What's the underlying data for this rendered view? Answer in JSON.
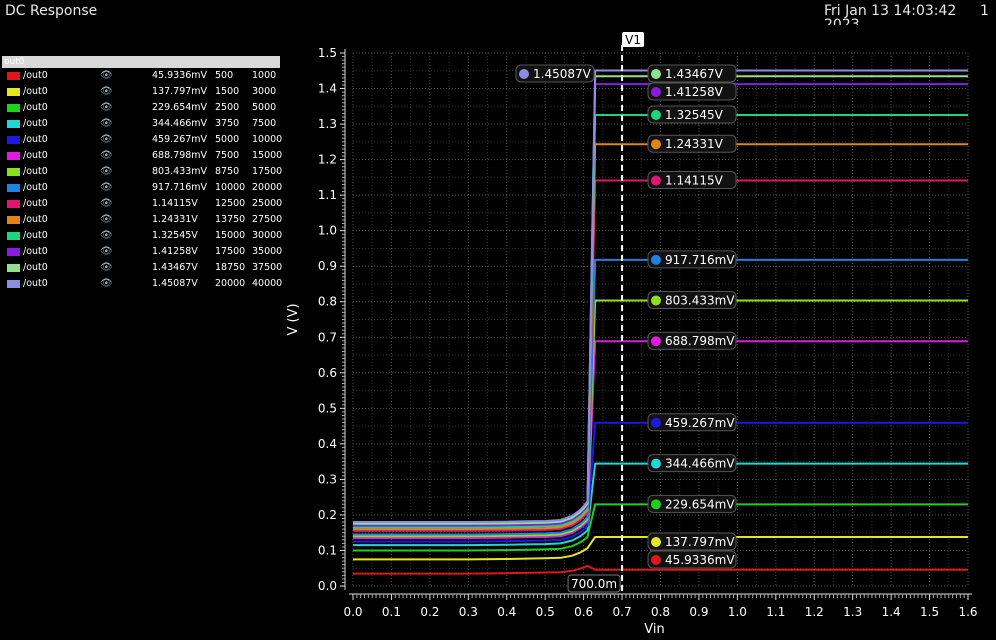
{
  "window": {
    "title": "DC Response",
    "date": "Fri Jan 13 14:03:42",
    "date_year": "2023",
    "page": "1"
  },
  "legend": {
    "header": "out0",
    "rows": [
      {
        "name": "/out0",
        "value": "45.9336mV",
        "a": "500",
        "b": "1000",
        "color": "#e0161b"
      },
      {
        "name": "/out0",
        "value": "137.797mV",
        "a": "1500",
        "b": "3000",
        "color": "#e6e620"
      },
      {
        "name": "/out0",
        "value": "229.654mV",
        "a": "2500",
        "b": "5000",
        "color": "#1fd01f"
      },
      {
        "name": "/out0",
        "value": "344.466mV",
        "a": "3750",
        "b": "7500",
        "color": "#20d6d6"
      },
      {
        "name": "/out0",
        "value": "459.267mV",
        "a": "5000",
        "b": "10000",
        "color": "#1b1be0"
      },
      {
        "name": "/out0",
        "value": "688.798mV",
        "a": "7500",
        "b": "15000",
        "color": "#e01be0"
      },
      {
        "name": "/out0",
        "value": "803.433mV",
        "a": "8750",
        "b": "17500",
        "color": "#8ce01b"
      },
      {
        "name": "/out0",
        "value": "917.716mV",
        "a": "10000",
        "b": "20000",
        "color": "#1f82e0"
      },
      {
        "name": "/out0",
        "value": "1.14115V",
        "a": "12500",
        "b": "25000",
        "color": "#e0166e"
      },
      {
        "name": "/out0",
        "value": "1.24331V",
        "a": "13750",
        "b": "27500",
        "color": "#e0841b"
      },
      {
        "name": "/out0",
        "value": "1.32545V",
        "a": "15000",
        "b": "30000",
        "color": "#1bd67e"
      },
      {
        "name": "/out0",
        "value": "1.41258V",
        "a": "17500",
        "b": "35000",
        "color": "#8a1be0"
      },
      {
        "name": "/out0",
        "value": "1.43467V",
        "a": "18750",
        "b": "37500",
        "color": "#90e090"
      },
      {
        "name": "/out0",
        "value": "1.45087V",
        "a": "20000",
        "b": "40000",
        "color": "#8c8ce0"
      }
    ]
  },
  "chart_data": {
    "type": "line",
    "xlabel": "Vin",
    "ylabel": "V (V)",
    "xlim": [
      0.0,
      1.6
    ],
    "ylim": [
      0.0,
      1.5
    ],
    "xticks": [
      "0.0",
      "0.1",
      "0.2",
      "0.3",
      "0.4",
      "0.5",
      "0.6",
      "0.7",
      "0.8",
      "0.9",
      "1.0",
      "1.1",
      "1.2",
      "1.3",
      "1.4",
      "1.5",
      "1.6"
    ],
    "yticks": [
      "0.0",
      "0.1",
      "0.2",
      "0.3",
      "0.4",
      "0.5",
      "0.6",
      "0.7",
      "0.8",
      "0.9",
      "1.0",
      "1.1",
      "1.2",
      "1.3",
      "1.4",
      "1.5"
    ],
    "grid": true,
    "marker": {
      "name": "V1",
      "x": 0.7,
      "readout": "700.0m"
    },
    "series": [
      {
        "label": "45.9336mV",
        "color": "#e0161b",
        "low": 0.035,
        "high": 0.0459336
      },
      {
        "label": "137.797mV",
        "color": "#e6e620",
        "low": 0.075,
        "high": 0.137797
      },
      {
        "label": "229.654mV",
        "color": "#1fd01f",
        "low": 0.1,
        "high": 0.229654
      },
      {
        "label": "344.466mV",
        "color": "#20d6d6",
        "low": 0.115,
        "high": 0.344466
      },
      {
        "label": "459.267mV",
        "color": "#1b1be0",
        "low": 0.125,
        "high": 0.459267
      },
      {
        "label": "688.798mV",
        "color": "#e01be0",
        "low": 0.135,
        "high": 0.688798
      },
      {
        "label": "803.433mV",
        "color": "#8ce01b",
        "low": 0.14,
        "high": 0.803433
      },
      {
        "label": "917.716mV",
        "color": "#1f82e0",
        "low": 0.145,
        "high": 0.917716
      },
      {
        "label": "1.14115V",
        "color": "#e0166e",
        "low": 0.155,
        "high": 1.14115
      },
      {
        "label": "1.24331V",
        "color": "#e0841b",
        "low": 0.16,
        "high": 1.24331
      },
      {
        "label": "1.32545V",
        "color": "#1bd67e",
        "low": 0.165,
        "high": 1.32545
      },
      {
        "label": "1.41258V",
        "color": "#8a1be0",
        "low": 0.17,
        "high": 1.41258
      },
      {
        "label": "1.43467V",
        "color": "#90e090",
        "low": 0.175,
        "high": 1.43467
      },
      {
        "label": "1.45087V",
        "color": "#8c8ce0",
        "low": 0.18,
        "high": 1.45087
      }
    ]
  }
}
